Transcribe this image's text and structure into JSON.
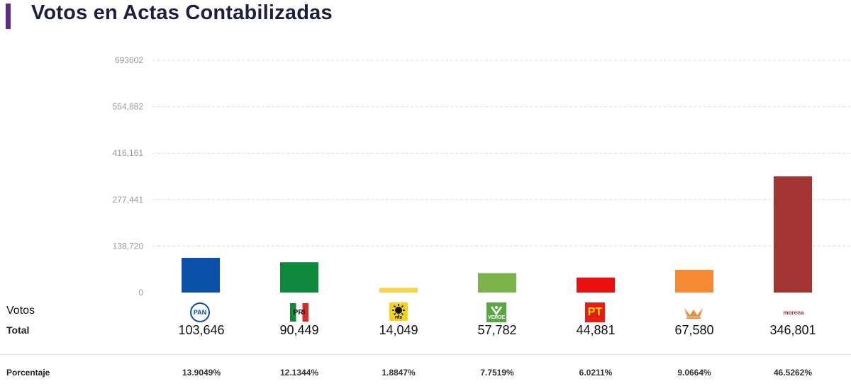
{
  "header": {
    "title": "Votos en Actas Contabilizadas"
  },
  "labels": {
    "votos": "Votos",
    "total": "Total",
    "porcentaje": "Porcentaje"
  },
  "parties": [
    {
      "id": "pan",
      "logo_text": "PAN",
      "color": "#0a4fa8",
      "total": "103,646",
      "pct": "13.9049%"
    },
    {
      "id": "pri",
      "logo_text": "PRI",
      "color": "#0f8a3c",
      "total": "90,449",
      "pct": "12.1344%"
    },
    {
      "id": "prd",
      "logo_text": "PRD",
      "color": "#f6d548",
      "total": "14,049",
      "pct": "1.8847%"
    },
    {
      "id": "verde",
      "logo_text": "VERDE",
      "color": "#7bb24a",
      "total": "57,782",
      "pct": "7.7519%"
    },
    {
      "id": "pt",
      "logo_text": "PT",
      "color": "#e81010",
      "total": "44,881",
      "pct": "6.0211%"
    },
    {
      "id": "mc",
      "logo_text": "",
      "color": "#f58a33",
      "total": "67,580",
      "pct": "9.0664%"
    },
    {
      "id": "morena",
      "logo_text": "morena",
      "color": "#a33432",
      "total": "346,801",
      "pct": "46.5262%"
    }
  ],
  "chart_data": {
    "type": "bar",
    "title": "Votos en Actas Contabilizadas",
    "categories": [
      "PAN",
      "PRI",
      "PRD",
      "VERDE",
      "PT",
      "MC",
      "MORENA"
    ],
    "values": [
      103646,
      90449,
      14049,
      57782,
      44881,
      67580,
      346801
    ],
    "ylim": [
      0,
      693602
    ],
    "yticks": [
      0,
      138720,
      277441,
      416161,
      554882,
      693602
    ],
    "ytick_labels": [
      "0",
      "138,720",
      "277,441",
      "416,161",
      "554,882",
      "693602"
    ],
    "grid": true,
    "colors": [
      "#0a4fa8",
      "#0f8a3c",
      "#f6d548",
      "#7bb24a",
      "#e81010",
      "#f58a33",
      "#a33432"
    ]
  }
}
